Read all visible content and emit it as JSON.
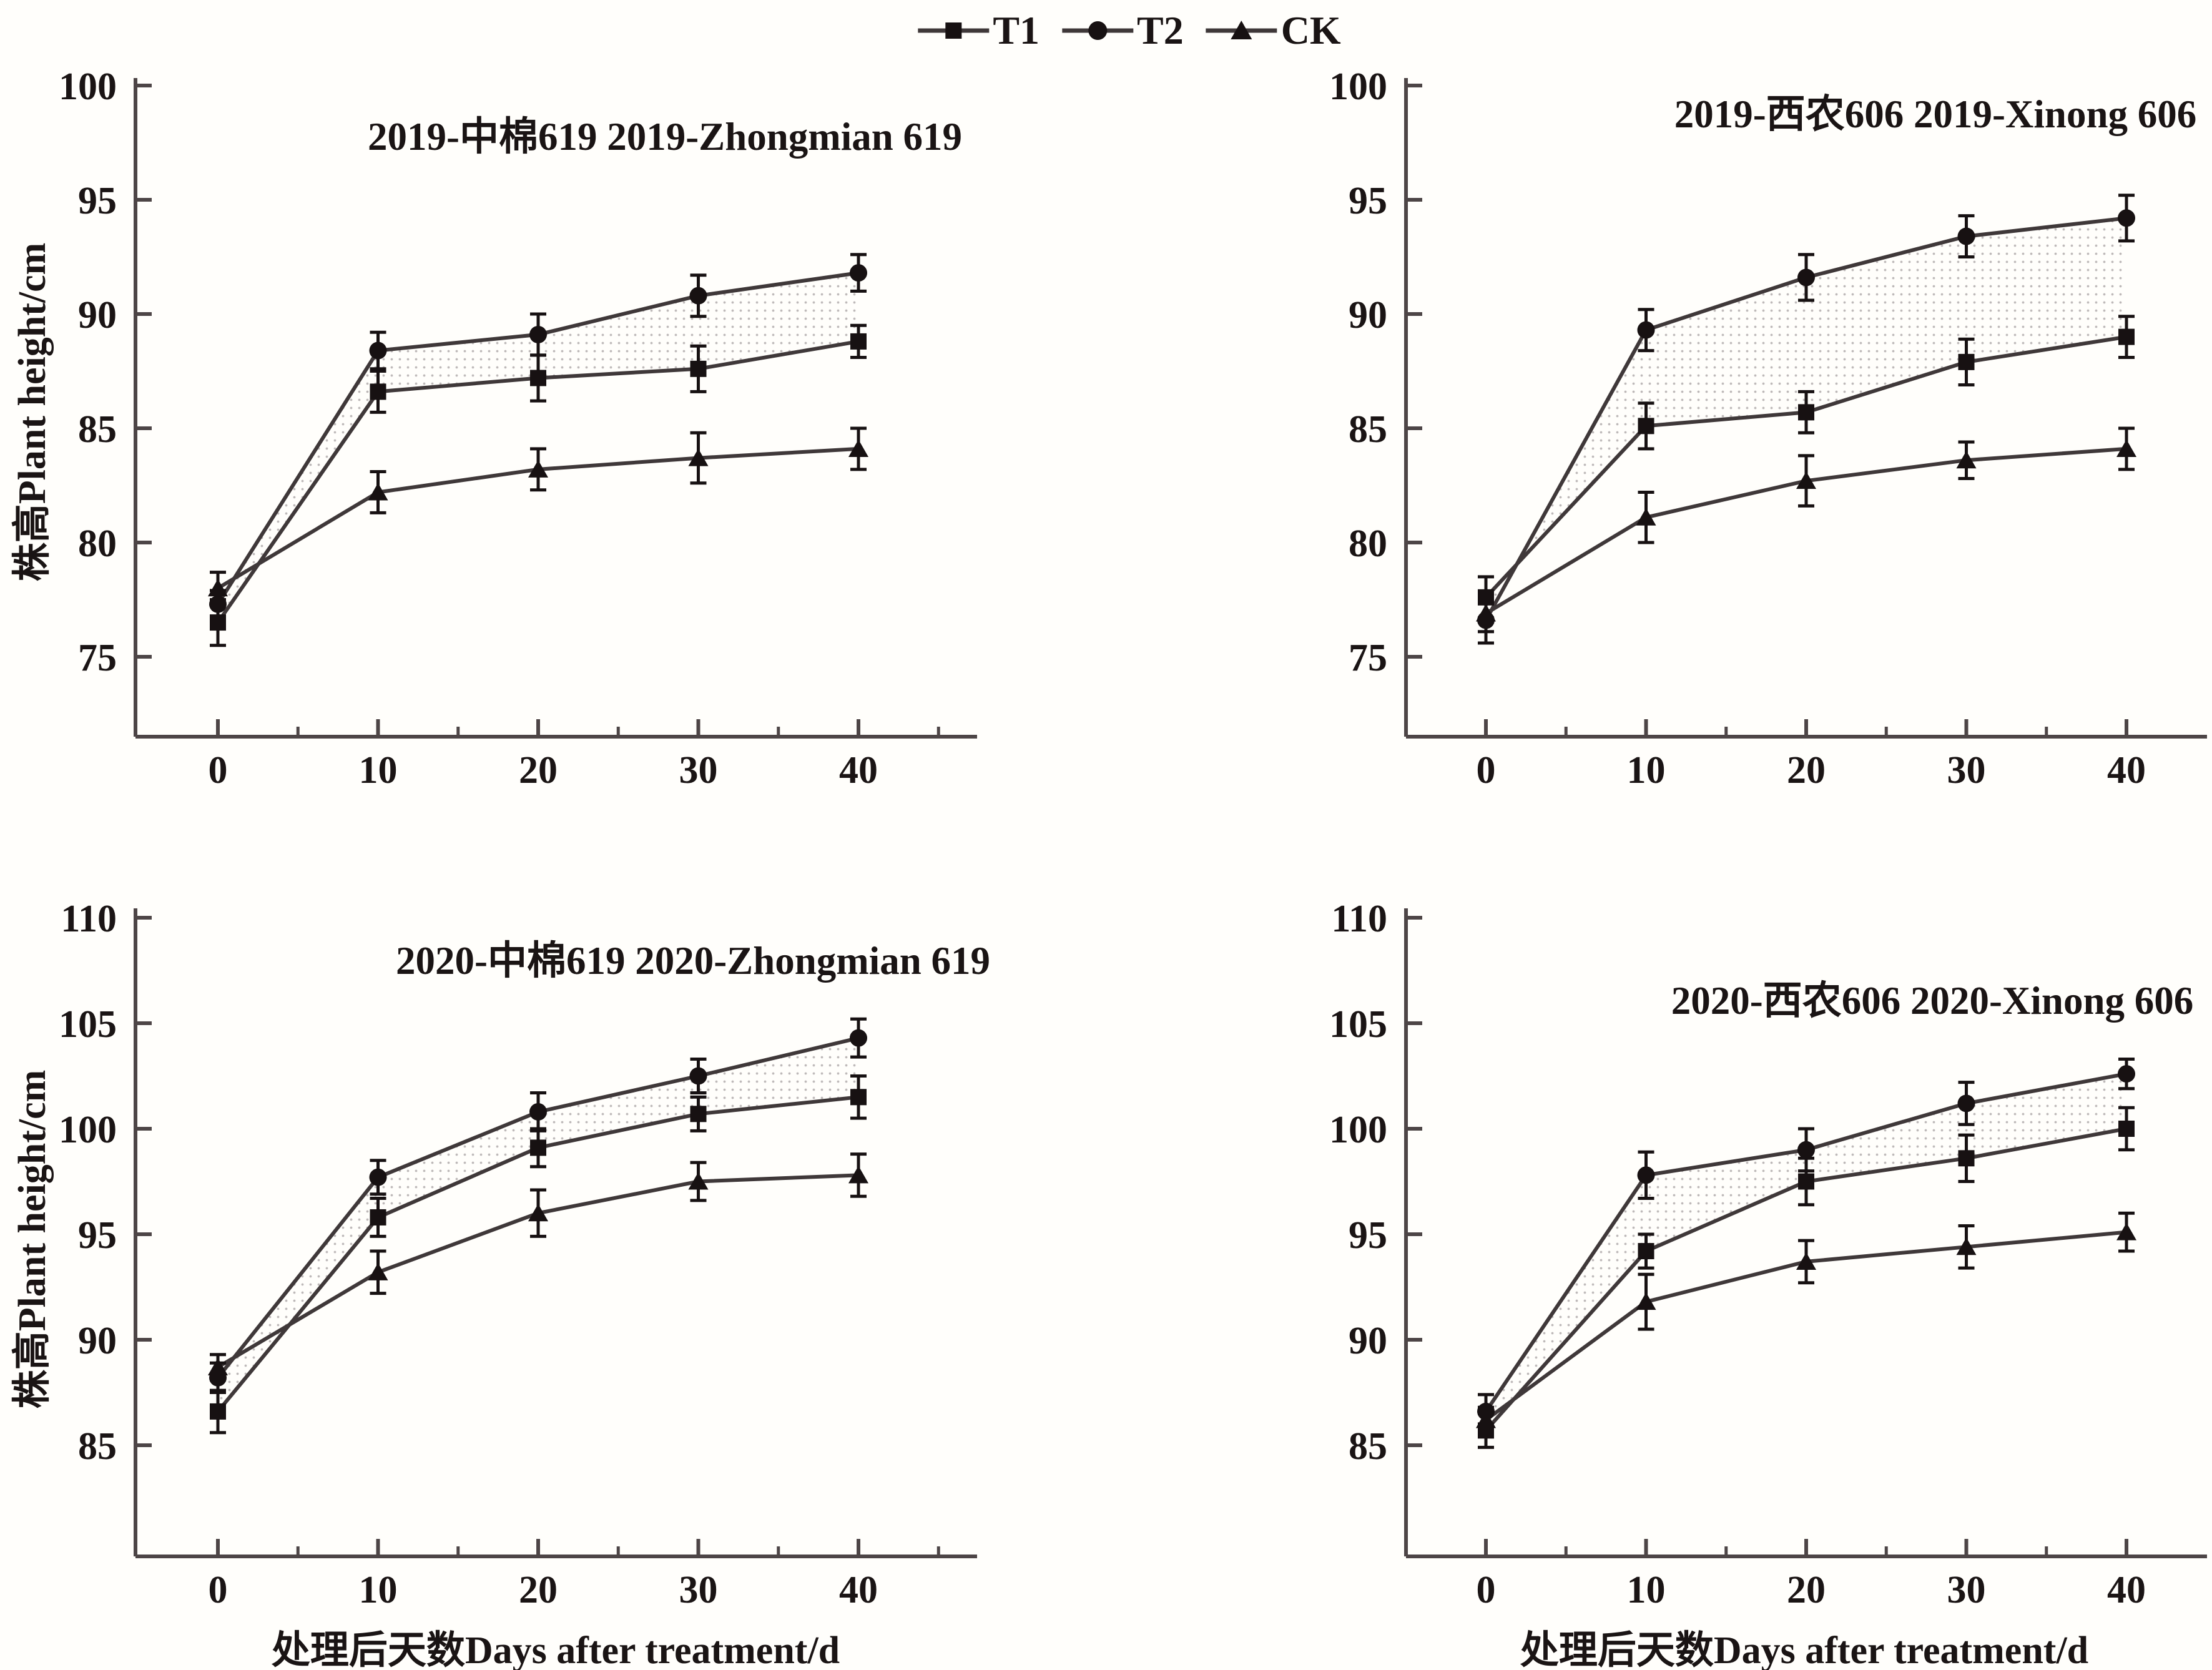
{
  "colors": {
    "background": "#fffefb",
    "axis": "#4d4546",
    "line": "#3f3839",
    "marker": "#171112",
    "error_bar": "#171112",
    "text": "#1a1414",
    "stipple": "#8a8384"
  },
  "legend": {
    "items": [
      {
        "label": "T1",
        "marker": "square"
      },
      {
        "label": "T2",
        "marker": "circle"
      },
      {
        "label": "CK",
        "marker": "triangle"
      }
    ]
  },
  "labels": {
    "ylabel": "株高Plant height/cm",
    "xlabel": "处理后天数Days after treatment/d"
  },
  "axes": {
    "x_major": [
      0,
      10,
      20,
      30,
      40
    ],
    "x_minor": [
      5,
      15,
      25,
      35,
      45
    ]
  },
  "chart_data": [
    {
      "type": "line",
      "title": "2019-中棉619 2019-Zhongmian 619",
      "xlabel": "",
      "ylabel": "株高Plant height/cm",
      "x": [
        0,
        10,
        20,
        30,
        40
      ],
      "ylim": [
        75,
        100
      ],
      "yticks": [
        75,
        80,
        85,
        90,
        95,
        100
      ],
      "grid": false,
      "series": [
        {
          "name": "T1",
          "marker": "square",
          "values": [
            76.5,
            86.6,
            87.2,
            87.6,
            88.8
          ],
          "errors": [
            1.0,
            0.9,
            1.0,
            1.0,
            0.7
          ]
        },
        {
          "name": "T2",
          "marker": "circle",
          "values": [
            77.3,
            88.4,
            89.1,
            90.8,
            91.8
          ],
          "errors": [
            0.6,
            0.8,
            0.9,
            0.9,
            0.8
          ]
        },
        {
          "name": "CK",
          "marker": "triangle",
          "values": [
            78.0,
            82.2,
            83.2,
            83.7,
            84.1
          ],
          "errors": [
            0.7,
            0.9,
            0.9,
            1.1,
            0.9
          ]
        }
      ]
    },
    {
      "type": "line",
      "title": "2019-西农606 2019-Xinong 606",
      "xlabel": "",
      "ylabel": "株高Plant height/cm",
      "x": [
        0,
        10,
        20,
        30,
        40
      ],
      "ylim": [
        75,
        100
      ],
      "yticks": [
        75,
        80,
        85,
        90,
        95,
        100
      ],
      "grid": false,
      "series": [
        {
          "name": "T1",
          "marker": "square",
          "values": [
            77.6,
            85.1,
            85.7,
            87.9,
            89.0
          ],
          "errors": [
            0.9,
            1.0,
            0.9,
            1.0,
            0.9
          ]
        },
        {
          "name": "T2",
          "marker": "circle",
          "values": [
            76.6,
            89.3,
            91.6,
            93.4,
            94.2
          ],
          "errors": [
            1.0,
            0.9,
            1.0,
            0.9,
            1.0
          ]
        },
        {
          "name": "CK",
          "marker": "triangle",
          "values": [
            76.9,
            81.1,
            82.7,
            83.6,
            84.1
          ],
          "errors": [
            0.8,
            1.1,
            1.1,
            0.8,
            0.9
          ]
        }
      ]
    },
    {
      "type": "line",
      "title": "2020-中棉619 2020-Zhongmian 619",
      "xlabel": "处理后天数Days after treatment/d",
      "ylabel": "株高Plant height/cm",
      "x": [
        0,
        10,
        20,
        30,
        40
      ],
      "ylim": [
        85,
        110
      ],
      "yticks": [
        85,
        90,
        95,
        100,
        105,
        110
      ],
      "grid": false,
      "series": [
        {
          "name": "T1",
          "marker": "square",
          "values": [
            86.6,
            95.8,
            99.1,
            100.7,
            101.5
          ],
          "errors": [
            1.0,
            0.9,
            0.9,
            0.8,
            1.0
          ]
        },
        {
          "name": "T2",
          "marker": "circle",
          "values": [
            88.2,
            97.7,
            100.8,
            102.5,
            104.3
          ],
          "errors": [
            0.7,
            0.8,
            0.9,
            0.8,
            0.9
          ]
        },
        {
          "name": "CK",
          "marker": "triangle",
          "values": [
            88.7,
            93.2,
            96.0,
            97.5,
            97.8
          ],
          "errors": [
            0.6,
            1.0,
            1.1,
            0.9,
            1.0
          ]
        }
      ]
    },
    {
      "type": "line",
      "title": "2020-西农606 2020-Xinong 606",
      "xlabel": "处理后天数Days after treatment/d",
      "ylabel": "株高Plant height/cm",
      "x": [
        0,
        10,
        20,
        30,
        40
      ],
      "ylim": [
        85,
        110
      ],
      "yticks": [
        85,
        90,
        95,
        100,
        105,
        110
      ],
      "grid": false,
      "series": [
        {
          "name": "T1",
          "marker": "square",
          "values": [
            85.7,
            94.2,
            97.5,
            98.6,
            100.0
          ],
          "errors": [
            0.8,
            0.8,
            1.1,
            1.1,
            1.0
          ]
        },
        {
          "name": "T2",
          "marker": "circle",
          "values": [
            86.6,
            97.8,
            99.0,
            101.2,
            102.6
          ],
          "errors": [
            0.8,
            1.1,
            1.0,
            1.0,
            0.7
          ]
        },
        {
          "name": "CK",
          "marker": "triangle",
          "values": [
            86.2,
            91.8,
            93.7,
            94.4,
            95.1
          ],
          "errors": [
            0.6,
            1.3,
            1.0,
            1.0,
            0.9
          ]
        }
      ]
    }
  ]
}
